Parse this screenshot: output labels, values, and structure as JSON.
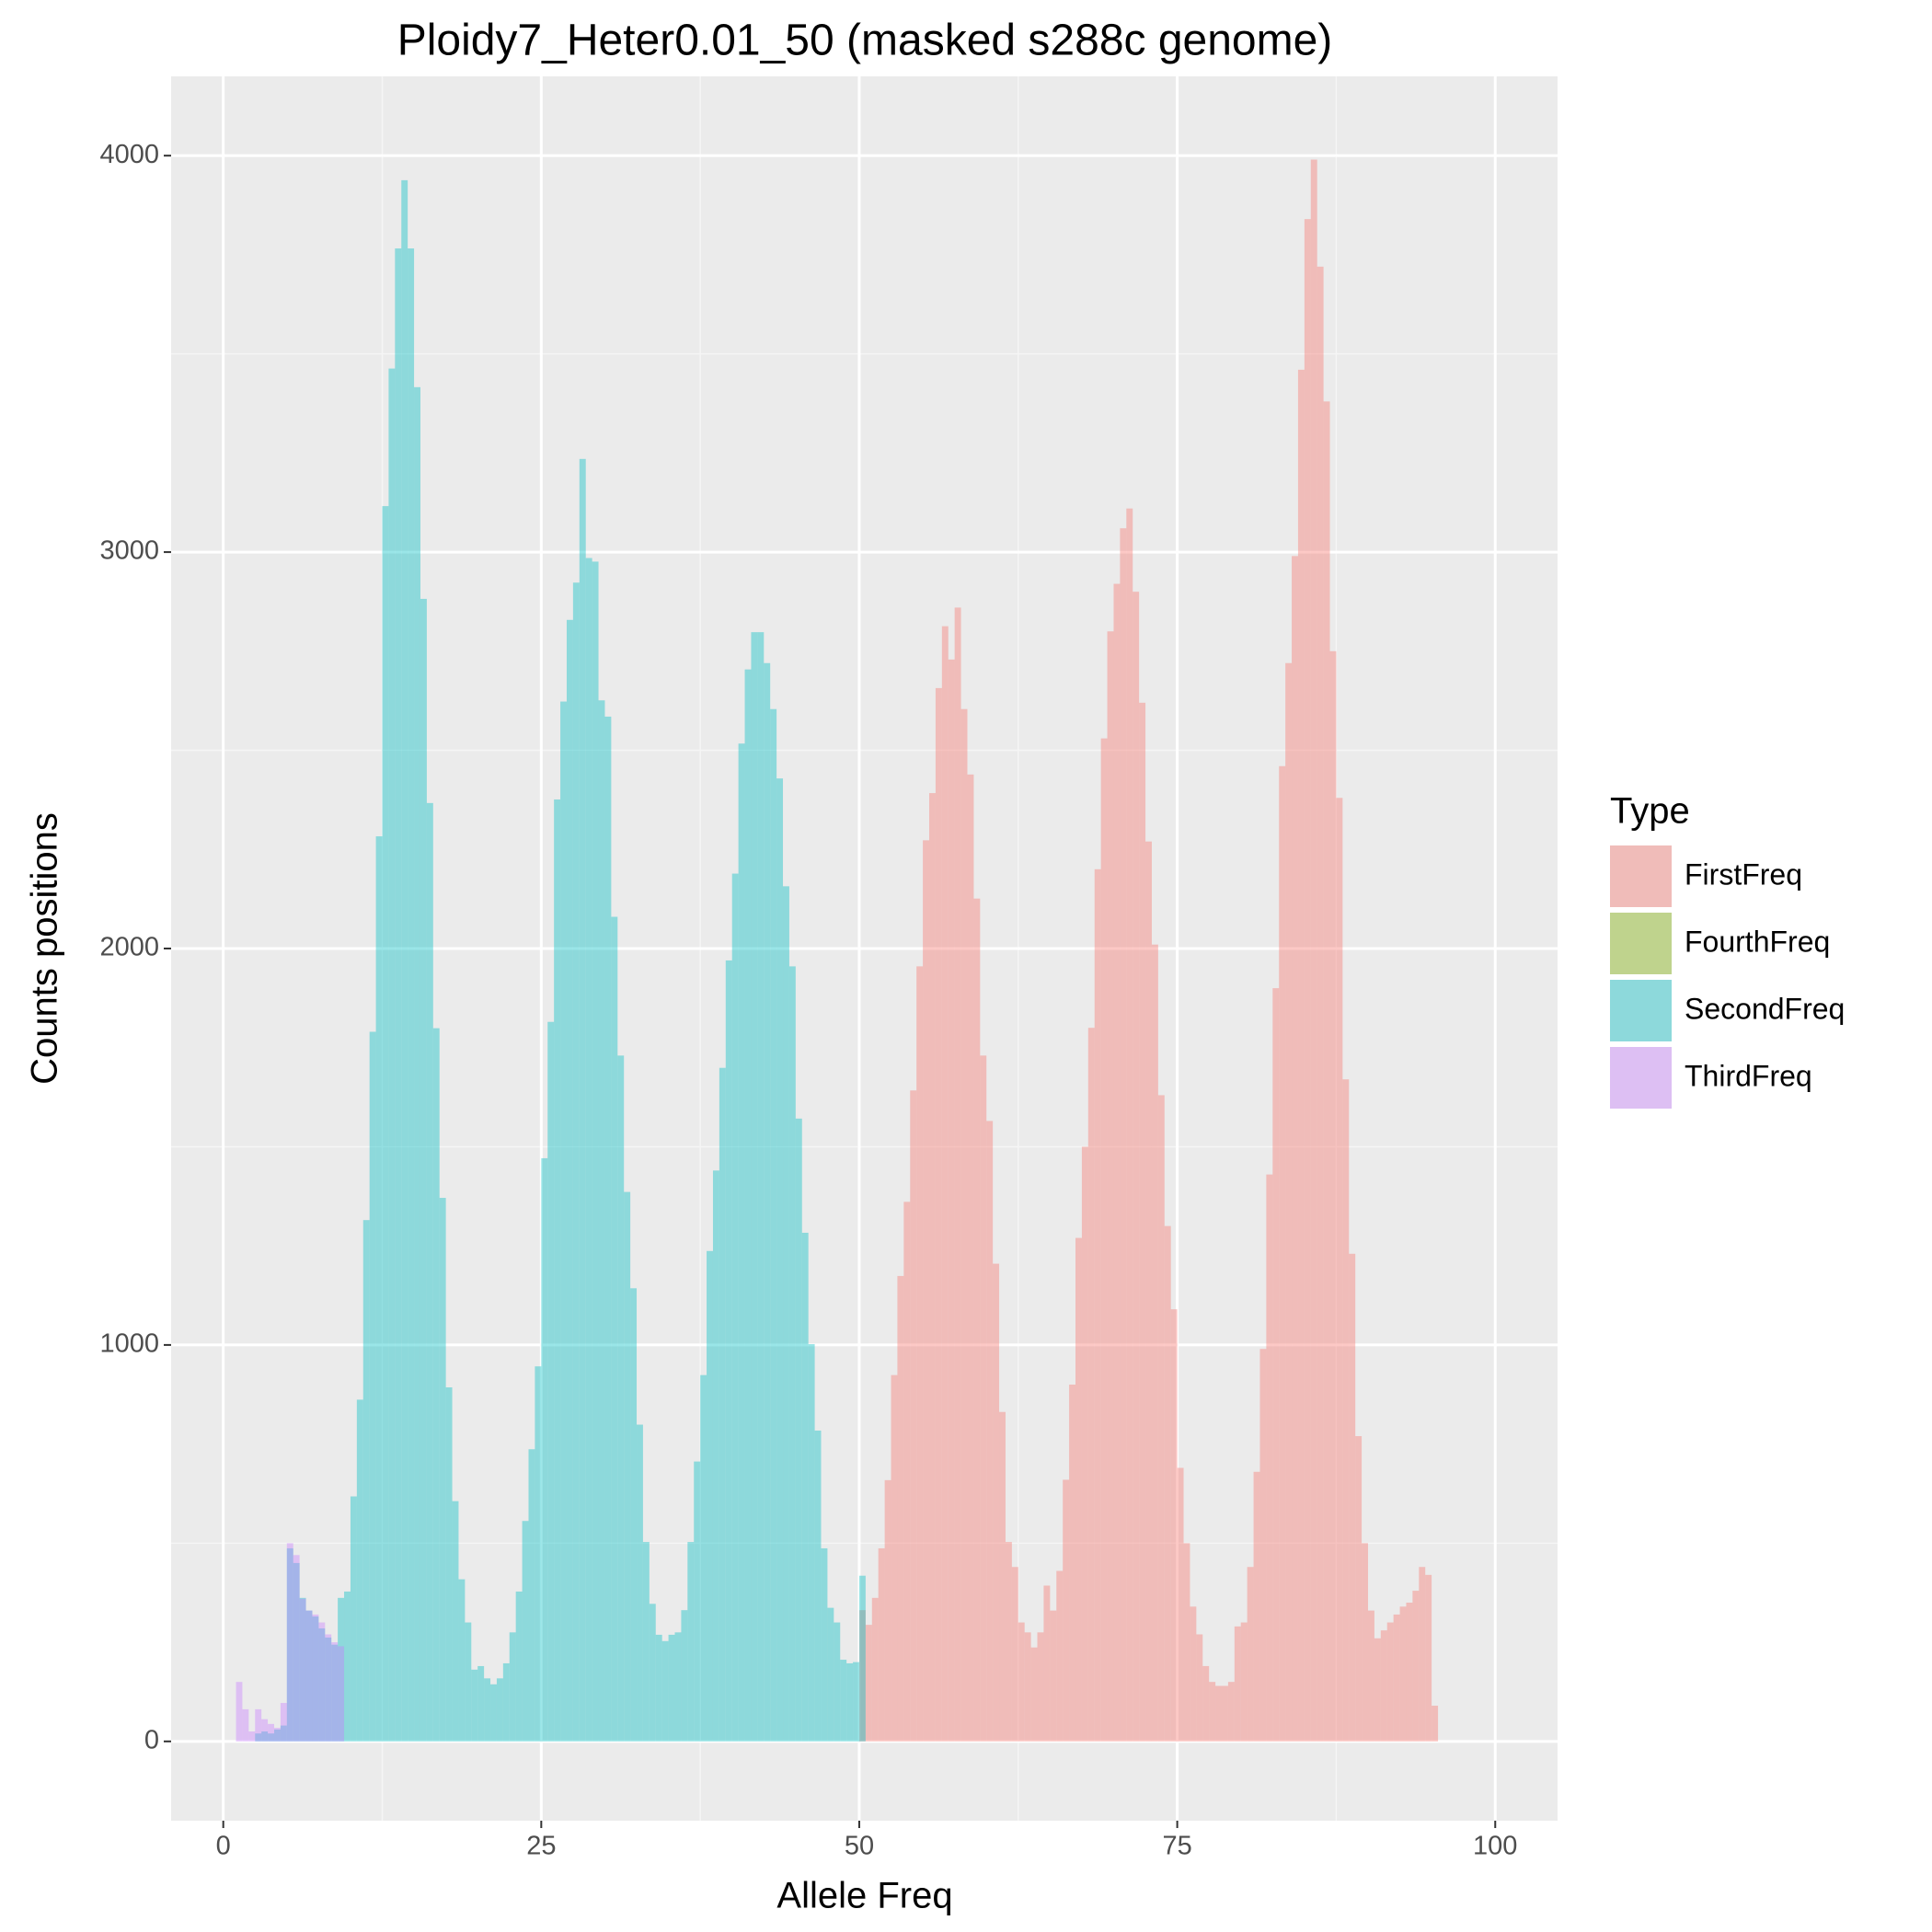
{
  "chart_data": {
    "type": "histogram",
    "title": "Ploidy7_Heter0.01_50 (masked s288c genome)",
    "x_label": "Allele Freq",
    "y_label": "Counts positions",
    "legend_title": "Type",
    "legend": "right",
    "grid": true,
    "xlim": [
      -4.1,
      104.9
    ],
    "xticks": [
      0,
      25,
      50,
      75,
      100
    ],
    "ylim": [
      -200,
      4200
    ],
    "yticks": [
      0,
      1000,
      2000,
      3000,
      4000
    ],
    "series": [
      {
        "name": "FirstFreq",
        "color": "#F8766D",
        "bins": [
          50,
          50.5,
          51,
          51.5,
          52,
          52.5,
          53,
          53.5,
          54,
          54.5,
          55,
          55.5,
          56,
          56.5,
          57,
          57.5,
          58,
          58.5,
          59,
          59.5,
          60,
          60.5,
          61,
          61.5,
          62,
          62.5,
          63,
          63.5,
          64,
          64.5,
          65,
          65.5,
          66,
          66.5,
          67,
          67.5,
          68,
          68.5,
          69,
          69.5,
          70,
          70.5,
          71,
          71.5,
          72,
          72.5,
          73,
          73.5,
          74,
          74.5,
          75,
          75.5,
          76,
          76.5,
          77,
          77.5,
          78,
          78.5,
          79,
          79.5,
          80,
          80.5,
          81,
          81.5,
          82,
          82.5,
          83,
          83.5,
          84,
          84.5,
          85,
          85.5,
          86,
          86.5,
          87,
          87.5,
          88,
          88.5,
          89,
          89.5,
          90,
          90.5,
          91,
          91.5,
          92,
          92.5,
          93,
          93.5,
          94,
          94.5,
          95,
          95.5
        ],
        "values": [
          331,
          294,
          362,
          487,
          659,
          924,
          1174,
          1361,
          1642,
          1955,
          2273,
          2392,
          2657,
          2813,
          2729,
          2860,
          2604,
          2439,
          2126,
          1730,
          1565,
          1205,
          831,
          503,
          440,
          300,
          275,
          237,
          275,
          393,
          330,
          430,
          660,
          900,
          1270,
          1500,
          1800,
          2200,
          2530,
          2800,
          2920,
          3060,
          3110,
          2900,
          2620,
          2270,
          2010,
          1630,
          1300,
          1090,
          690,
          500,
          340,
          270,
          190,
          150,
          140,
          140,
          150,
          290,
          300,
          440,
          680,
          990,
          1430,
          1900,
          2460,
          2720,
          2990,
          3460,
          3840,
          3990,
          3720,
          3380,
          2750,
          2380,
          1670,
          1230,
          770,
          500,
          330,
          260,
          280,
          300,
          320,
          340,
          350,
          380,
          440,
          420,
          90
        ]
      },
      {
        "name": "FourthFreq",
        "color": "#7CAE00"
      },
      {
        "name": "SecondFreq",
        "color": "#00BFC4",
        "bins": [
          2.5,
          3,
          3.5,
          4,
          4.5,
          5,
          5.5,
          6,
          6.5,
          7,
          7.5,
          8,
          8.5,
          9,
          9.5,
          10,
          10.5,
          11,
          11.5,
          12,
          12.5,
          13,
          13.5,
          14,
          14.5,
          15,
          15.5,
          16,
          16.5,
          17,
          17.5,
          18,
          18.5,
          19,
          19.5,
          20,
          20.5,
          21,
          21.5,
          22,
          22.5,
          23,
          23.5,
          24,
          24.5,
          25,
          25.5,
          26,
          26.5,
          27,
          27.5,
          28,
          28.5,
          29,
          29.5,
          30,
          30.5,
          31,
          31.5,
          32,
          32.5,
          33,
          33.5,
          34,
          34.5,
          35,
          35.5,
          36,
          36.5,
          37,
          37.5,
          38,
          38.5,
          39,
          39.5,
          40,
          40.5,
          41,
          41.5,
          42,
          42.5,
          43,
          43.5,
          44,
          44.5,
          45,
          45.5,
          46,
          46.5,
          47,
          47.5,
          48,
          48.5,
          49,
          49.5,
          50,
          50.5
        ],
        "values": [
          20,
          25,
          20,
          30,
          40,
          487,
          450,
          362,
          330,
          315,
          285,
          262,
          244,
          362,
          378,
          618,
          862,
          1315,
          1790,
          2283,
          3116,
          3463,
          3766,
          3938,
          3766,
          3416,
          2882,
          2367,
          1799,
          1371,
          893,
          606,
          409,
          300,
          181,
          190,
          159,
          144,
          159,
          197,
          275,
          378,
          556,
          737,
          946,
          1471,
          1815,
          2376,
          2623,
          2829,
          2923,
          3235,
          2985,
          2976,
          2626,
          2585,
          2080,
          1730,
          1386,
          1143,
          799,
          503,
          347,
          269,
          253,
          269,
          275,
          331,
          503,
          706,
          924,
          1237,
          1440,
          1699,
          1970,
          2189,
          2517,
          2704,
          2798,
          2798,
          2720,
          2604,
          2429,
          2157,
          1955,
          1571,
          1283,
          1002,
          784,
          487,
          337,
          300,
          206,
          197,
          200,
          418
        ]
      },
      {
        "name": "ThirdFreq",
        "color": "#C77CFF",
        "bins": [
          1,
          1.5,
          2,
          2.5,
          3,
          3.5,
          4,
          4.5,
          5,
          5.5,
          6,
          6.5,
          7,
          7.5,
          8,
          8.5,
          9,
          9.5
        ],
        "values": [
          150,
          81,
          25,
          81,
          56,
          44,
          34,
          97,
          500,
          470,
          360,
          330,
          320,
          300,
          270,
          250,
          240
        ]
      }
    ]
  }
}
